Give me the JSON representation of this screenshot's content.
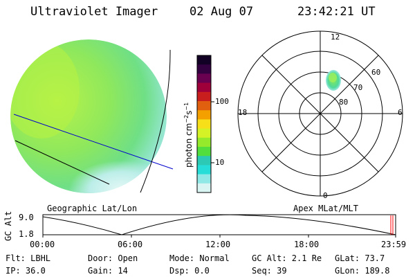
{
  "header": {
    "title": "Ultraviolet Imager",
    "date": "02 Aug 07",
    "time": "23:42:21 UT"
  },
  "colorbar": {
    "unit_label": "photon cm",
    "unit_exp1": "−2",
    "unit_s": "s",
    "unit_exp2": "−1",
    "ticks": [
      "100",
      "10"
    ],
    "colors": [
      "#120025",
      "#330040",
      "#6a0050",
      "#a0003a",
      "#c81e1e",
      "#e06010",
      "#f3a000",
      "#f7e019",
      "#d4f226",
      "#95ea2b",
      "#52de3c",
      "#2cc9b4",
      "#26ddd8",
      "#8fe8e6",
      "#d8f4f3"
    ]
  },
  "polar_plot": {
    "mlt_labels": {
      "top": "12",
      "left": "18",
      "right": "6",
      "bottom": "0"
    },
    "lat_labels": [
      "60",
      "70",
      "80"
    ]
  },
  "labels": {
    "geo": "Geographic Lat/Lon",
    "apex": "Apex MLat/MLT"
  },
  "altitude_plot": {
    "ylabel": "GC Alt",
    "yticks": [
      "9.0",
      "1.8"
    ],
    "xticks": [
      "00:00",
      "06:00",
      "12:00",
      "18:00",
      "23:59"
    ]
  },
  "status": {
    "flt": "Flt: LBHL",
    "ip": "IP: 36.0",
    "door": "Door: Open",
    "gain": "Gain: 14",
    "mode": "Mode: Normal",
    "dsp": "Dsp:    0.0",
    "gcalt": "GC Alt: 2.1 Re",
    "seq": "Seq: 39",
    "glat": "GLat:   73.7",
    "glon": "GLon: 189.8"
  },
  "colors": {
    "grid_line": "#0000cc",
    "marker": "#ff0000",
    "disk_base": "#8ee05a",
    "disk_bright": "#b0f050",
    "disk_dim": "#c0f0ee"
  }
}
